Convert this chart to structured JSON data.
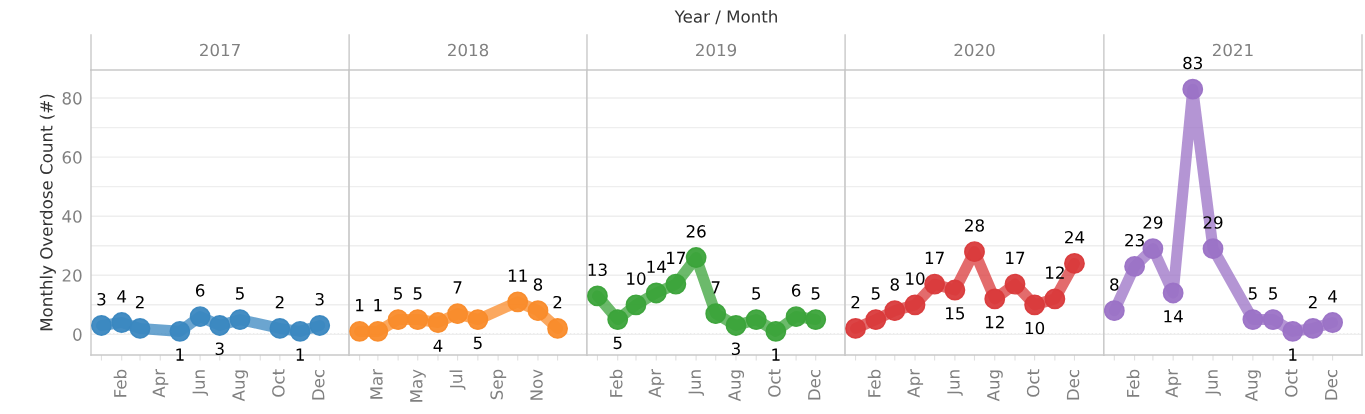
{
  "chart_data": [
    {
      "type": "line",
      "title": "2017",
      "ylabel": "Monthly Overdose Count (#)",
      "annotations": [
        "Year / Month"
      ],
      "marker": "circle",
      "data_labels": true,
      "grid": "y",
      "series": [
        {
          "color": "#3a87c0",
          "x": [
            "2017-01",
            "2017-02",
            "2017-03",
            "2017-05",
            "2017-06",
            "2017-07",
            "2017-08",
            "2017-10",
            "2017-11",
            "2017-12"
          ],
          "values": [
            3,
            4,
            2,
            1,
            6,
            3,
            5,
            2,
            1,
            3
          ]
        }
      ],
      "xlim": [
        "2016-12-16",
        "2018-01-15"
      ],
      "xticks": [
        {
          "value": "2017-01",
          "label": null
        },
        {
          "value": "2017-02",
          "label": "Feb"
        },
        {
          "value": "2017-03",
          "label": null
        },
        {
          "value": "2017-04",
          "label": "Apr"
        },
        {
          "value": "2017-05",
          "label": null
        },
        {
          "value": "2017-06",
          "label": "Jun"
        },
        {
          "value": "2017-07",
          "label": null
        },
        {
          "value": "2017-08",
          "label": "Aug"
        },
        {
          "value": "2017-09",
          "label": null
        },
        {
          "value": "2017-10",
          "label": "Oct"
        },
        {
          "value": "2017-11",
          "label": null
        },
        {
          "value": "2017-12",
          "label": "Dec"
        }
      ],
      "ylim": [
        -7,
        89.5
      ],
      "yticks": [
        0,
        {
          "value": 10,
          "label": null
        },
        20,
        {
          "value": 30,
          "label": null
        },
        40,
        {
          "value": 50,
          "label": null
        },
        60,
        {
          "value": 70,
          "label": null
        },
        80
      ],
      "ref_lines": [
        {
          "axis": "y",
          "value": 0,
          "color": "#b0b0b0",
          "line_style": "dotted"
        }
      ]
    },
    {
      "type": "line",
      "title": "2018",
      "marker": "circle",
      "data_labels": true,
      "grid": "y",
      "tick_labels": "x",
      "series": [
        {
          "color": "#f98b2a",
          "x": [
            "2018-02",
            "2018-03",
            "2018-04",
            "2018-05",
            "2018-06",
            "2018-07",
            "2018-08",
            "2018-10",
            "2018-11",
            "2018-12"
          ],
          "values": [
            1,
            1,
            5,
            5,
            4,
            7,
            5,
            11,
            8,
            2
          ]
        }
      ],
      "xlim": [
        "2018-01-16",
        "2019-01-15"
      ],
      "xticks": [
        {
          "value": "2018-02",
          "label": null
        },
        {
          "value": "2018-03",
          "label": "Mar"
        },
        {
          "value": "2018-04",
          "label": null
        },
        {
          "value": "2018-05",
          "label": "May"
        },
        {
          "value": "2018-06",
          "label": null
        },
        {
          "value": "2018-07",
          "label": "Jul"
        },
        {
          "value": "2018-08",
          "label": null
        },
        {
          "value": "2018-09",
          "label": "Sep"
        },
        {
          "value": "2018-10",
          "label": null
        },
        {
          "value": "2018-11",
          "label": "Nov"
        },
        {
          "value": "2018-12",
          "label": null
        }
      ],
      "ylim": [
        -7,
        89.5
      ],
      "yticks": [
        0,
        {
          "value": 10,
          "label": null
        },
        20,
        {
          "value": 30,
          "label": null
        },
        40,
        {
          "value": 50,
          "label": null
        },
        60,
        {
          "value": 70,
          "label": null
        },
        80
      ],
      "ref_lines": [
        {
          "axis": "y",
          "value": 0,
          "color": "#b0b0b0",
          "line_style": "dotted"
        }
      ]
    },
    {
      "type": "line",
      "title": "2019",
      "marker": "circle",
      "data_labels": true,
      "grid": "y",
      "tick_labels": "x",
      "series": [
        {
          "color": "#3ba33a",
          "x": [
            "2019-01",
            "2019-02",
            "2019-03",
            "2019-04",
            "2019-05",
            "2019-06",
            "2019-07",
            "2019-08",
            "2019-09",
            "2019-10",
            "2019-11",
            "2019-12"
          ],
          "values": [
            13,
            5,
            10,
            14,
            17,
            26,
            7,
            3,
            5,
            1,
            6,
            5
          ]
        }
      ],
      "xlim": [
        "2018-12-16",
        "2020-01-15"
      ],
      "xticks": [
        {
          "value": "2019-01",
          "label": null
        },
        {
          "value": "2019-02",
          "label": "Feb"
        },
        {
          "value": "2019-03",
          "label": null
        },
        {
          "value": "2019-04",
          "label": "Apr"
        },
        {
          "value": "2019-05",
          "label": null
        },
        {
          "value": "2019-06",
          "label": "Jun"
        },
        {
          "value": "2019-07",
          "label": null
        },
        {
          "value": "2019-08",
          "label": "Aug"
        },
        {
          "value": "2019-09",
          "label": null
        },
        {
          "value": "2019-10",
          "label": "Oct"
        },
        {
          "value": "2019-11",
          "label": null
        },
        {
          "value": "2019-12",
          "label": "Dec"
        }
      ],
      "ylim": [
        -7,
        89.5
      ],
      "yticks": [
        0,
        {
          "value": 10,
          "label": null
        },
        20,
        {
          "value": 30,
          "label": null
        },
        40,
        {
          "value": 50,
          "label": null
        },
        60,
        {
          "value": 70,
          "label": null
        },
        80
      ],
      "ref_lines": [
        {
          "axis": "y",
          "value": 0,
          "color": "#b0b0b0",
          "line_style": "dotted"
        }
      ]
    },
    {
      "type": "line",
      "title": "2020",
      "marker": "circle",
      "data_labels": true,
      "grid": "y",
      "tick_labels": "x",
      "series": [
        {
          "color": "#d93a3b",
          "x": [
            "2020-01",
            "2020-02",
            "2020-03",
            "2020-04",
            "2020-05",
            "2020-06",
            "2020-07",
            "2020-08",
            "2020-09",
            "2020-10",
            "2020-11",
            "2020-12"
          ],
          "values": [
            2,
            5,
            8,
            10,
            17,
            15,
            28,
            12,
            17,
            10,
            12,
            24
          ]
        }
      ],
      "xlim": [
        "2019-12-16",
        "2021-01-15"
      ],
      "xticks": [
        {
          "value": "2020-01",
          "label": null
        },
        {
          "value": "2020-02",
          "label": "Feb"
        },
        {
          "value": "2020-03",
          "label": null
        },
        {
          "value": "2020-04",
          "label": "Apr"
        },
        {
          "value": "2020-05",
          "label": null
        },
        {
          "value": "2020-06",
          "label": "Jun"
        },
        {
          "value": "2020-07",
          "label": null
        },
        {
          "value": "2020-08",
          "label": "Aug"
        },
        {
          "value": "2020-09",
          "label": null
        },
        {
          "value": "2020-10",
          "label": "Oct"
        },
        {
          "value": "2020-11",
          "label": null
        },
        {
          "value": "2020-12",
          "label": "Dec"
        }
      ],
      "ylim": [
        -7,
        89.5
      ],
      "yticks": [
        0,
        {
          "value": 10,
          "label": null
        },
        20,
        {
          "value": 30,
          "label": null
        },
        40,
        {
          "value": 50,
          "label": null
        },
        60,
        {
          "value": 70,
          "label": null
        },
        80
      ],
      "ref_lines": [
        {
          "axis": "y",
          "value": 0,
          "color": "#b0b0b0",
          "line_style": "dotted"
        }
      ]
    },
    {
      "type": "line",
      "title": "2021",
      "marker": "circle",
      "data_labels": true,
      "grid": "y",
      "tick_labels": "x",
      "series": [
        {
          "color": "#9b72c6",
          "x": [
            "2021-01",
            "2021-02",
            "2021-03",
            "2021-04",
            "2021-05",
            "2021-06",
            "2021-08",
            "2021-09",
            "2021-10",
            "2021-11",
            "2021-12"
          ],
          "values": [
            8,
            23,
            29,
            14,
            83,
            29,
            5,
            5,
            1,
            2,
            4
          ]
        }
      ],
      "xlim": [
        "2020-12-16",
        "2022-01-15"
      ],
      "xticks": [
        {
          "value": "2021-01",
          "label": null
        },
        {
          "value": "2021-02",
          "label": "Feb"
        },
        {
          "value": "2021-03",
          "label": null
        },
        {
          "value": "2021-04",
          "label": "Apr"
        },
        {
          "value": "2021-05",
          "label": null
        },
        {
          "value": "2021-06",
          "label": "Jun"
        },
        {
          "value": "2021-07",
          "label": null
        },
        {
          "value": "2021-08",
          "label": "Aug"
        },
        {
          "value": "2021-09",
          "label": null
        },
        {
          "value": "2021-10",
          "label": "Oct"
        },
        {
          "value": "2021-11",
          "label": null
        },
        {
          "value": "2021-12",
          "label": "Dec"
        }
      ],
      "ylim": [
        -7,
        89.5
      ],
      "yticks": [
        0,
        {
          "value": 10,
          "label": null
        },
        20,
        {
          "value": 30,
          "label": null
        },
        40,
        {
          "value": 50,
          "label": null
        },
        60,
        {
          "value": 70,
          "label": null
        },
        80
      ],
      "ref_lines": [
        {
          "axis": "y",
          "value": 0,
          "color": "#b0b0b0",
          "line_style": "dotted"
        }
      ]
    }
  ]
}
